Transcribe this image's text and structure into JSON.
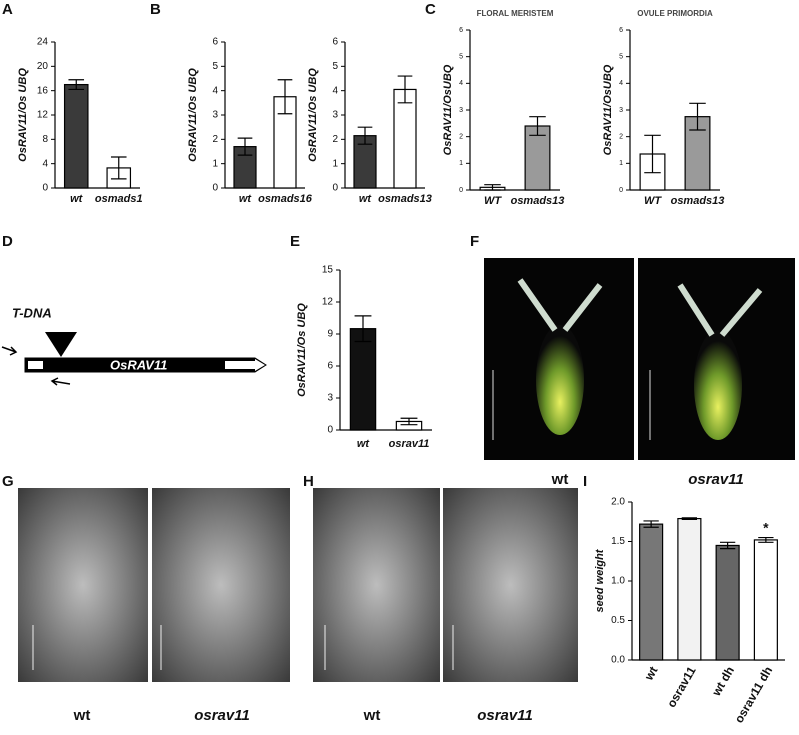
{
  "panel_labels": [
    "A",
    "B",
    "C",
    "D",
    "E",
    "F",
    "G",
    "H",
    "I"
  ],
  "diagram": {
    "tdna": "T-DNA",
    "gene": "OsRAV11"
  },
  "photo_labels": {
    "F": [
      "wt",
      "osrav11"
    ],
    "G": [
      "wt",
      "osrav11"
    ],
    "H": [
      "wt",
      "osrav11"
    ]
  },
  "chart_data": [
    {
      "type": "bar",
      "ylabel": "OsRAV11/Os UBQ",
      "categories": [
        "wt",
        "osmads1"
      ],
      "values": [
        17,
        3.3
      ],
      "errors": [
        0.8,
        1.8
      ],
      "colors": [
        "#3a3a3a",
        "#ffffff"
      ],
      "ylim": [
        0,
        24
      ],
      "yticks": [
        0,
        4,
        8,
        12,
        16,
        20,
        24
      ]
    },
    {
      "type": "bar",
      "ylabel": "OsRAV11/Os UBQ",
      "categories": [
        "wt",
        "osmads16"
      ],
      "values": [
        1.7,
        3.75
      ],
      "errors": [
        0.35,
        0.7
      ],
      "colors": [
        "#3a3a3a",
        "#ffffff"
      ],
      "ylim": [
        0,
        6
      ],
      "yticks": [
        0,
        1,
        2,
        3,
        4,
        5,
        6
      ]
    },
    {
      "type": "bar",
      "ylabel": "OsRAV11/Os UBQ",
      "categories": [
        "wt",
        "osmads13"
      ],
      "values": [
        2.15,
        4.05
      ],
      "errors": [
        0.35,
        0.55
      ],
      "colors": [
        "#3a3a3a",
        "#ffffff"
      ],
      "ylim": [
        0,
        6
      ],
      "yticks": [
        0,
        1,
        2,
        3,
        4,
        5,
        6
      ]
    },
    {
      "type": "bar",
      "title": "FLORAL MERISTEM",
      "ylabel": "OsRAV11/OsUBQ",
      "categories": [
        "WT",
        "osmads13"
      ],
      "values": [
        0.1,
        2.4
      ],
      "errors": [
        0.1,
        0.35
      ],
      "colors": [
        "#ffffff",
        "#9a9a9a"
      ],
      "ylim": [
        0,
        6
      ],
      "yticks": [
        0,
        1,
        2,
        3,
        4,
        5,
        6
      ]
    },
    {
      "type": "bar",
      "title": "OVULE PRIMORDIA",
      "ylabel": "OsRAV11/OsUBQ",
      "categories": [
        "WT",
        "osmads13"
      ],
      "values": [
        1.35,
        2.75
      ],
      "errors": [
        0.7,
        0.5
      ],
      "colors": [
        "#ffffff",
        "#9a9a9a"
      ],
      "ylim": [
        0,
        6
      ],
      "yticks": [
        0,
        1,
        2,
        3,
        4,
        5,
        6
      ]
    },
    {
      "type": "bar",
      "ylabel": "OsRAV11/Os UBQ",
      "categories": [
        "wt",
        "osrav11"
      ],
      "values": [
        9.5,
        0.8
      ],
      "errors": [
        1.2,
        0.3
      ],
      "colors": [
        "#111111",
        "#ffffff"
      ],
      "ylim": [
        0,
        15
      ],
      "yticks": [
        0,
        3,
        6,
        9,
        12,
        15
      ]
    },
    {
      "type": "bar",
      "ylabel": "seed weight",
      "categories": [
        "wt",
        "osrav11",
        "wt dh",
        "osrav11 dh"
      ],
      "values": [
        1.72,
        1.79,
        1.45,
        1.52
      ],
      "errors": [
        0.04,
        0.01,
        0.04,
        0.03
      ],
      "colors": [
        "#777777",
        "#f2f2f2",
        "#666666",
        "#ffffff"
      ],
      "annotation": "*",
      "ylim": [
        0,
        2
      ],
      "yticks": [
        {
          "value": 0,
          "label": "0.0"
        },
        0.5,
        {
          "value": 1,
          "label": "1.0"
        },
        1.5,
        {
          "value": 2,
          "label": "2.0"
        }
      ]
    }
  ]
}
